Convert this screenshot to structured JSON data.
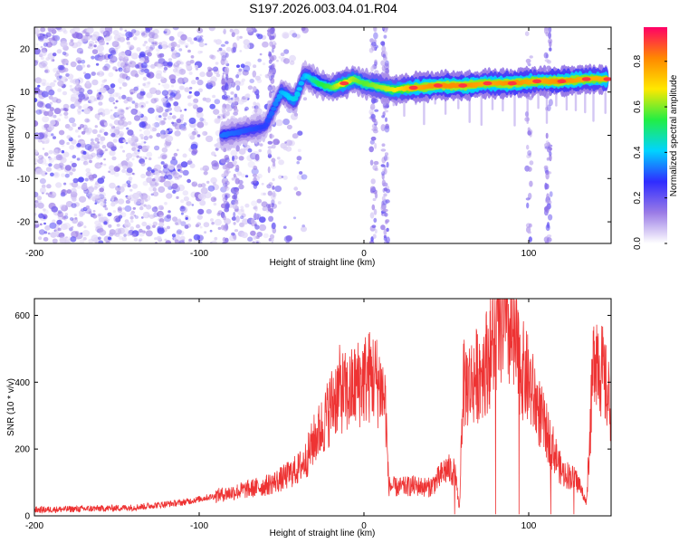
{
  "title": "S197.2026.003.04.01.R04",
  "colors": {
    "background": "#ffffff",
    "snr_line": "#ee3333",
    "spectrum_scatter": "#8a3cf0"
  },
  "chart_data": [
    {
      "type": "heatmap",
      "xlabel": "Height of straight line (km)",
      "ylabel": "Frequency (Hz)",
      "xlim": [
        -200,
        150
      ],
      "ylim": [
        -25,
        25
      ],
      "x_ticks": [
        -200,
        -100,
        0,
        100
      ],
      "y_ticks": [
        -20,
        -10,
        0,
        10,
        20
      ],
      "colorbar": {
        "label": "Normalized spectral amplitude",
        "range": [
          0.0,
          0.95
        ],
        "ticks": [
          "0.0",
          "0.2",
          "0.4",
          "0.6",
          "0.8"
        ],
        "colormap": [
          "#ffffff",
          "#9a7be6",
          "#2f2cff",
          "#00d4ff",
          "#22ee44",
          "#ffe800",
          "#ff8800",
          "#ff0066"
        ]
      },
      "ridge": [
        {
          "x": -86,
          "y": 0,
          "amp": 0.35
        },
        {
          "x": -60,
          "y": 2,
          "amp": 0.3
        },
        {
          "x": -50,
          "y": 10,
          "amp": 0.4
        },
        {
          "x": -42,
          "y": 8,
          "amp": 0.45
        },
        {
          "x": -36,
          "y": 14,
          "amp": 0.4
        },
        {
          "x": -28,
          "y": 12,
          "amp": 0.55
        },
        {
          "x": -20,
          "y": 11,
          "amp": 0.6
        },
        {
          "x": -12,
          "y": 12,
          "amp": 0.75
        },
        {
          "x": -6,
          "y": 13,
          "amp": 0.65
        },
        {
          "x": 0,
          "y": 12,
          "amp": 0.6
        },
        {
          "x": 18,
          "y": 10.5,
          "amp": 0.7
        },
        {
          "x": 30,
          "y": 11,
          "amp": 0.8
        },
        {
          "x": 45,
          "y": 11.5,
          "amp": 0.85
        },
        {
          "x": 60,
          "y": 11.5,
          "amp": 0.85
        },
        {
          "x": 75,
          "y": 12,
          "amp": 0.8
        },
        {
          "x": 90,
          "y": 12,
          "amp": 0.85
        },
        {
          "x": 105,
          "y": 12.5,
          "amp": 0.8
        },
        {
          "x": 120,
          "y": 12.5,
          "amp": 0.85
        },
        {
          "x": 135,
          "y": 13,
          "amp": 0.8
        },
        {
          "x": 148,
          "y": 13,
          "amp": 0.8
        }
      ]
    },
    {
      "type": "line",
      "xlabel": "Height of straight line (km)",
      "ylabel": "SNR (10 * v/v)",
      "xlim": [
        -200,
        150
      ],
      "ylim": [
        0,
        650
      ],
      "x_ticks": [
        -200,
        -100,
        0,
        100
      ],
      "y_ticks": [
        0,
        200,
        400,
        600
      ],
      "series": [
        {
          "x": [
            -200,
            -180,
            -160,
            -140,
            -120,
            -110,
            -100,
            -90,
            -80,
            -70,
            -60,
            -50,
            -40,
            -35,
            -30,
            -25,
            -20,
            -15,
            -10,
            -5,
            0,
            5,
            10,
            13,
            15,
            20,
            30,
            40,
            45,
            50,
            55,
            58,
            60,
            65,
            70,
            75,
            80,
            85,
            90,
            95,
            100,
            105,
            110,
            115,
            120,
            125,
            130,
            135,
            140,
            145,
            150
          ],
          "y": [
            18,
            20,
            22,
            25,
            35,
            40,
            50,
            60,
            70,
            80,
            90,
            110,
            140,
            170,
            230,
            270,
            330,
            380,
            360,
            390,
            410,
            420,
            390,
            340,
            90,
            85,
            90,
            85,
            110,
            140,
            130,
            20,
            390,
            400,
            430,
            470,
            540,
            600,
            520,
            450,
            400,
            330,
            260,
            200,
            130,
            120,
            100,
            40,
            520,
            420,
            320
          ]
        }
      ]
    }
  ]
}
